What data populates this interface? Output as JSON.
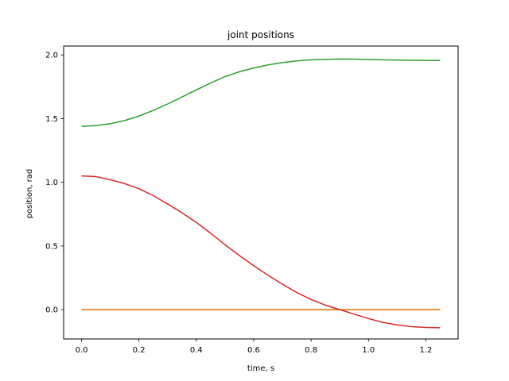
{
  "chart_data": {
    "type": "line",
    "title": "joint positions",
    "xlabel": "time, s",
    "ylabel": "position, rad",
    "xlim": [
      -0.0625,
      1.3125
    ],
    "ylim": [
      -0.23,
      2.07
    ],
    "xticks": [
      0.0,
      0.2,
      0.4,
      0.6,
      0.8,
      1.0,
      1.2
    ],
    "xtick_labels": [
      "0.0",
      "0.2",
      "0.4",
      "0.6",
      "0.8",
      "1.0",
      "1.2"
    ],
    "yticks": [
      0.0,
      0.5,
      1.0,
      1.5,
      2.0
    ],
    "ytick_labels": [
      "0.0",
      "0.5",
      "1.0",
      "1.5",
      "2.0"
    ],
    "grid": false,
    "legend": "none",
    "series": [
      {
        "color": "#1f77b4",
        "x": [
          0.0,
          1.25
        ],
        "y": [
          0.0,
          0.0
        ]
      },
      {
        "color": "#ff7f0e",
        "x": [
          0.0,
          1.25
        ],
        "y": [
          0.0,
          0.0
        ]
      },
      {
        "color": "#2ca02c",
        "x": [
          0.0,
          0.05,
          0.1,
          0.15,
          0.2,
          0.25,
          0.3,
          0.35,
          0.4,
          0.45,
          0.5,
          0.55,
          0.6,
          0.65,
          0.7,
          0.75,
          0.8,
          0.85,
          0.9,
          0.95,
          1.0,
          1.05,
          1.1,
          1.15,
          1.2,
          1.25
        ],
        "y": [
          1.44,
          1.445,
          1.46,
          1.485,
          1.52,
          1.565,
          1.615,
          1.67,
          1.725,
          1.78,
          1.83,
          1.868,
          1.898,
          1.922,
          1.94,
          1.953,
          1.962,
          1.966,
          1.968,
          1.967,
          1.965,
          1.962,
          1.96,
          1.958,
          1.957,
          1.956
        ]
      },
      {
        "color": "#d62728",
        "x": [
          0.0,
          0.05,
          0.1,
          0.15,
          0.2,
          0.25,
          0.3,
          0.35,
          0.4,
          0.45,
          0.5,
          0.55,
          0.6,
          0.65,
          0.7,
          0.75,
          0.8,
          0.85,
          0.9,
          0.95,
          1.0,
          1.05,
          1.1,
          1.15,
          1.2,
          1.25
        ],
        "y": [
          1.05,
          1.045,
          1.02,
          0.99,
          0.95,
          0.895,
          0.83,
          0.76,
          0.685,
          0.6,
          0.51,
          0.425,
          0.345,
          0.27,
          0.2,
          0.135,
          0.08,
          0.035,
          0.0,
          -0.035,
          -0.07,
          -0.1,
          -0.12,
          -0.133,
          -0.14,
          -0.142
        ]
      }
    ]
  }
}
